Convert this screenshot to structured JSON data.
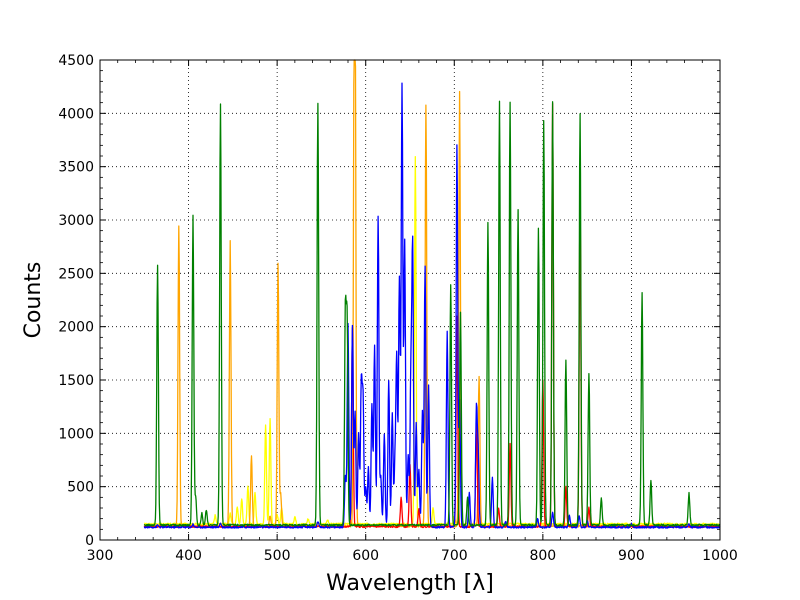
{
  "chart_data": {
    "type": "line",
    "title": "",
    "xlabel": "Wavelength [λ]",
    "ylabel": "Counts",
    "xlim": [
      300,
      1000
    ],
    "ylim": [
      0,
      4500
    ],
    "xticks": [
      300,
      400,
      500,
      600,
      700,
      800,
      900,
      1000
    ],
    "yticks": [
      0,
      500,
      1000,
      1500,
      2000,
      2500,
      3000,
      3500,
      4000,
      4500
    ],
    "grid": true,
    "legend": "none",
    "series": [
      {
        "color": "#ffff00",
        "baseline": 150,
        "x_range": [
          350,
          1000
        ],
        "peaks": [
          [
            430,
            230
          ],
          [
            447,
            250
          ],
          [
            455,
            310
          ],
          [
            460,
            380
          ],
          [
            467,
            500
          ],
          [
            475,
            450
          ],
          [
            487,
            1080
          ],
          [
            492,
            1140
          ],
          [
            500,
            240
          ],
          [
            505,
            300
          ],
          [
            520,
            220
          ],
          [
            535,
            200
          ],
          [
            557,
            190
          ],
          [
            656,
            3600
          ],
          [
            676,
            300
          ],
          [
            700,
            220
          ],
          [
            760,
            140
          ],
          [
            850,
            140
          ],
          [
            900,
            150
          ],
          [
            950,
            150
          ]
        ]
      },
      {
        "color": "#ffa500",
        "baseline": 130,
        "x_range": [
          350,
          1000
        ],
        "peaks": [
          [
            389,
            2950
          ],
          [
            447,
            2800
          ],
          [
            471,
            790
          ],
          [
            492,
            230
          ],
          [
            501,
            2600
          ],
          [
            504,
            430
          ],
          [
            588,
            4100
          ],
          [
            668,
            4080
          ],
          [
            706,
            4200
          ],
          [
            728,
            1540
          ],
          [
            587,
            3800
          ]
        ]
      },
      {
        "color": "#ff0000",
        "baseline": 125,
        "x_range": [
          350,
          1000
        ],
        "peaks": [
          [
            585,
            1990
          ],
          [
            640,
            400
          ],
          [
            650,
            700
          ],
          [
            660,
            300
          ],
          [
            703,
            2100
          ],
          [
            725,
            1100
          ],
          [
            750,
            300
          ],
          [
            763,
            900
          ],
          [
            800,
            1500
          ],
          [
            811,
            4100
          ],
          [
            826,
            500
          ],
          [
            842,
            3200
          ],
          [
            852,
            300
          ]
        ]
      },
      {
        "color": "#0000ff",
        "baseline": 120,
        "x_range": [
          350,
          1000
        ],
        "peaks": [
          [
            365,
            140
          ],
          [
            405,
            150
          ],
          [
            436,
            160
          ],
          [
            546,
            170
          ],
          [
            577,
            600
          ],
          [
            580,
            2030
          ],
          [
            585,
            2010
          ],
          [
            588,
            1200
          ],
          [
            592,
            1000
          ],
          [
            595,
            1450
          ],
          [
            597,
            1300
          ],
          [
            600,
            500
          ],
          [
            603,
            680
          ],
          [
            607,
            1270
          ],
          [
            610,
            1820
          ],
          [
            614,
            3040
          ],
          [
            617,
            600
          ],
          [
            621,
            1000
          ],
          [
            626,
            1500
          ],
          [
            630,
            1190
          ],
          [
            633,
            700
          ],
          [
            635,
            1720
          ],
          [
            638,
            2450
          ],
          [
            641,
            4260
          ],
          [
            644,
            2800
          ],
          [
            648,
            800
          ],
          [
            651,
            1520
          ],
          [
            653,
            2730
          ],
          [
            657,
            1100
          ],
          [
            660,
            660
          ],
          [
            664,
            1200
          ],
          [
            667,
            2570
          ],
          [
            671,
            1450
          ],
          [
            692,
            1950
          ],
          [
            703,
            3700
          ],
          [
            706,
            1300
          ],
          [
            717,
            450
          ],
          [
            725,
            1230
          ],
          [
            727,
            800
          ],
          [
            743,
            580
          ],
          [
            758,
            180
          ],
          [
            794,
            200
          ],
          [
            811,
            260
          ],
          [
            830,
            230
          ],
          [
            841,
            230
          ],
          [
            850,
            180
          ],
          [
            900,
            150
          ],
          [
            965,
            150
          ]
        ]
      },
      {
        "color": "#008000",
        "baseline": 140,
        "x_range": [
          350,
          1000
        ],
        "peaks": [
          [
            365,
            2570
          ],
          [
            405,
            3050
          ],
          [
            408,
            400
          ],
          [
            415,
            250
          ],
          [
            420,
            280
          ],
          [
            436,
            4090
          ],
          [
            546,
            4100
          ],
          [
            577,
            2100
          ],
          [
            579,
            2020
          ],
          [
            696,
            2390
          ],
          [
            707,
            2130
          ],
          [
            715,
            400
          ],
          [
            738,
            2970
          ],
          [
            751,
            4110
          ],
          [
            763,
            4100
          ],
          [
            772,
            3100
          ],
          [
            795,
            2920
          ],
          [
            801,
            3930
          ],
          [
            811,
            4100
          ],
          [
            826,
            1690
          ],
          [
            842,
            4000
          ],
          [
            852,
            1560
          ],
          [
            866,
            390
          ],
          [
            912,
            2320
          ],
          [
            922,
            560
          ],
          [
            965,
            440
          ]
        ]
      }
    ]
  }
}
